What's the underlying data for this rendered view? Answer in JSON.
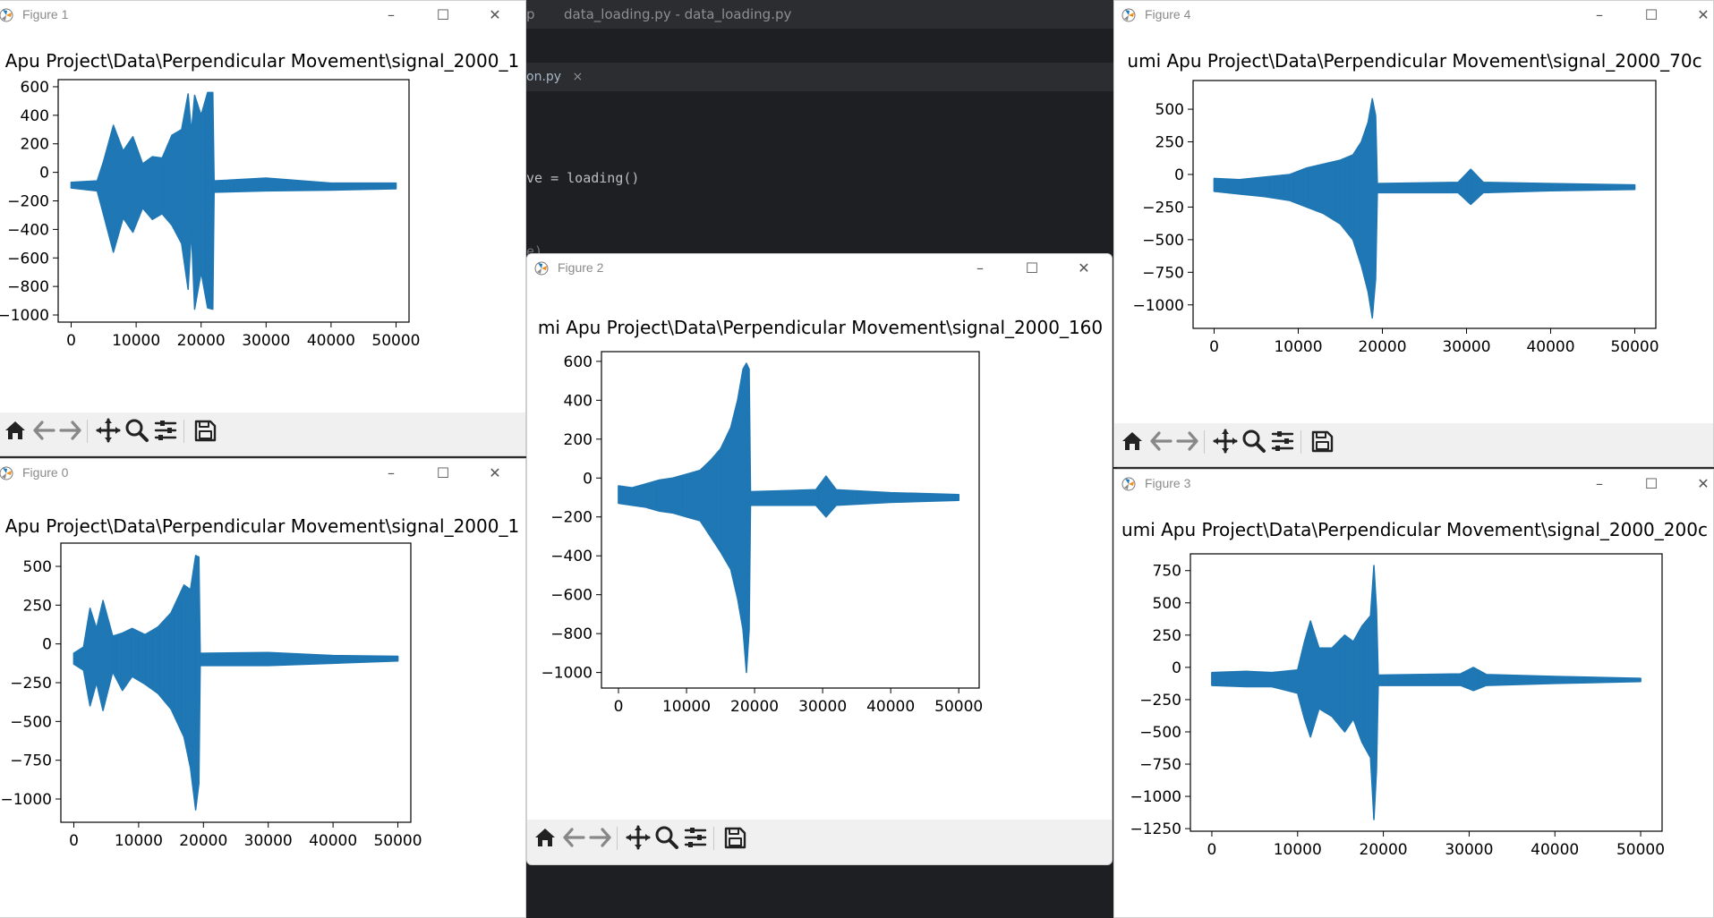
{
  "ide": {
    "title_left": "p",
    "title_main": "data_loading.py - data_loading.py",
    "tab_label": "on.py",
    "tab_close": "×",
    "code_line_1": "ve = loading()",
    "code_line_2": "e)"
  },
  "window_controls": {
    "minimize": "–",
    "maximize": "☐",
    "close": "✕"
  },
  "toolbar_icons": [
    "home-icon",
    "back-arrow-icon",
    "forward-arrow-icon",
    "pan-move-icon",
    "zoom-magnifier-icon",
    "subplot-config-icon",
    "save-icon"
  ],
  "figures": [
    {
      "title": "Figure 1",
      "plot_title": "Apu Project\\Data\\Perpendicular Movement\\signal_2000_1",
      "chart_data": {
        "type": "line",
        "title": "Apu Project\\Data\\Perpendicular Movement\\signal_2000_1",
        "xlim": [
          -2000,
          52000
        ],
        "ylim": [
          -1050,
          650
        ],
        "yticks": [
          600,
          400,
          200,
          0,
          -200,
          -400,
          -600,
          -800,
          -1000
        ],
        "xticks": [
          0,
          10000,
          20000,
          30000,
          40000,
          50000
        ],
        "envelope": {
          "x": [
            0,
            4000,
            5000,
            6500,
            8000,
            9500,
            11000,
            12500,
            14000,
            15500,
            17000,
            18000,
            18500,
            19000,
            20000,
            21000,
            21800,
            22000,
            30000,
            40000,
            50000
          ],
          "upper": [
            -70,
            -60,
            80,
            330,
            150,
            250,
            60,
            110,
            100,
            260,
            300,
            550,
            280,
            540,
            400,
            560,
            560,
            -60,
            -40,
            -75,
            -75
          ],
          "lower": [
            -110,
            -130,
            -300,
            -560,
            -320,
            -420,
            -250,
            -330,
            -290,
            -370,
            -500,
            -820,
            -400,
            -960,
            -700,
            -950,
            -960,
            -140,
            -130,
            -125,
            -115
          ]
        },
        "color": "#1f77b4"
      }
    },
    {
      "title": "Figure 0",
      "plot_title": "Apu Project\\Data\\Perpendicular Movement\\signal_2000_1",
      "chart_data": {
        "type": "line",
        "title": "Apu Project\\Data\\Perpendicular Movement\\signal_2000_1",
        "xlim": [
          -2000,
          52000
        ],
        "ylim": [
          -1150,
          650
        ],
        "yticks": [
          500,
          250,
          0,
          -250,
          -500,
          -750,
          -1000
        ],
        "xticks": [
          0,
          10000,
          20000,
          30000,
          40000,
          50000
        ],
        "envelope": {
          "x": [
            0,
            1500,
            2500,
            3500,
            4500,
            6000,
            7500,
            9000,
            11000,
            13000,
            15000,
            17000,
            18000,
            18800,
            19300,
            19500,
            30000,
            40000,
            50000
          ],
          "upper": [
            -60,
            -20,
            230,
            100,
            280,
            50,
            70,
            100,
            60,
            110,
            200,
            380,
            350,
            570,
            560,
            -60,
            -55,
            -75,
            -80
          ],
          "lower": [
            -130,
            -170,
            -400,
            -250,
            -430,
            -180,
            -300,
            -210,
            -260,
            -320,
            -420,
            -600,
            -800,
            -1070,
            -900,
            -140,
            -140,
            -125,
            -110
          ]
        },
        "color": "#1f77b4"
      }
    },
    {
      "title": "Figure 2",
      "plot_title": "mi Apu Project\\Data\\Perpendicular Movement\\signal_2000_160",
      "chart_data": {
        "type": "line",
        "title": "mi Apu Project\\Data\\Perpendicular Movement\\signal_2000_160",
        "xlim": [
          -2500,
          53000
        ],
        "ylim": [
          -1080,
          650
        ],
        "yticks": [
          600,
          400,
          200,
          0,
          -200,
          -400,
          -600,
          -800,
          -1000
        ],
        "xticks": [
          0,
          10000,
          20000,
          30000,
          40000,
          50000
        ],
        "envelope": {
          "x": [
            0,
            2000,
            4000,
            6000,
            8000,
            10000,
            12000,
            13500,
            15000,
            16500,
            17500,
            18300,
            18800,
            19200,
            19400,
            29000,
            30500,
            32000,
            40000,
            50000
          ],
          "upper": [
            -40,
            -50,
            -30,
            -10,
            0,
            20,
            40,
            90,
            150,
            260,
            400,
            560,
            590,
            560,
            -70,
            -60,
            10,
            -60,
            -75,
            -85
          ],
          "lower": [
            -130,
            -140,
            -150,
            -170,
            -180,
            -200,
            -220,
            -300,
            -380,
            -470,
            -620,
            -780,
            -1000,
            -780,
            -140,
            -140,
            -200,
            -140,
            -125,
            -115
          ]
        },
        "color": "#1f77b4"
      }
    },
    {
      "title": "Figure 4",
      "plot_title": "umi Apu Project\\Data\\Perpendicular Movement\\signal_2000_70c",
      "chart_data": {
        "type": "line",
        "title": "umi Apu Project\\Data\\Perpendicular Movement\\signal_2000_70c",
        "xlim": [
          -2500,
          52500
        ],
        "ylim": [
          -1180,
          720
        ],
        "yticks": [
          500,
          250,
          0,
          -250,
          -500,
          -750,
          -1000
        ],
        "xticks": [
          0,
          10000,
          20000,
          30000,
          40000,
          50000
        ],
        "envelope": {
          "x": [
            0,
            3000,
            6000,
            9000,
            11000,
            13000,
            15000,
            16500,
            17500,
            18300,
            18800,
            19200,
            19400,
            29000,
            30500,
            32000,
            40000,
            50000
          ],
          "upper": [
            -30,
            -40,
            -20,
            0,
            50,
            80,
            110,
            150,
            250,
            400,
            580,
            450,
            -70,
            -60,
            40,
            -60,
            -70,
            -80
          ],
          "lower": [
            -130,
            -150,
            -170,
            -200,
            -250,
            -300,
            -380,
            -500,
            -700,
            -900,
            -1100,
            -800,
            -140,
            -140,
            -230,
            -140,
            -125,
            -115
          ]
        },
        "color": "#1f77b4"
      }
    },
    {
      "title": "Figure 3",
      "plot_title": "umi Apu Project\\Data\\Perpendicular Movement\\signal_2000_200c",
      "chart_data": {
        "type": "line",
        "title": "umi Apu Project\\Data\\Perpendicular Movement\\signal_2000_200c",
        "xlim": [
          -2500,
          52500
        ],
        "ylim": [
          -1270,
          880
        ],
        "yticks": [
          750,
          500,
          250,
          0,
          -250,
          -500,
          -750,
          -1000,
          -1250
        ],
        "xticks": [
          0,
          10000,
          20000,
          30000,
          40000,
          50000
        ],
        "envelope": {
          "x": [
            0,
            4000,
            7000,
            10000,
            10800,
            11500,
            12500,
            14000,
            15500,
            16500,
            17500,
            18500,
            18900,
            19200,
            19400,
            29000,
            30500,
            32000,
            40000,
            50000
          ],
          "upper": [
            -40,
            -30,
            -40,
            -20,
            200,
            360,
            150,
            150,
            250,
            200,
            320,
            400,
            790,
            450,
            -60,
            -50,
            0,
            -55,
            -70,
            -85
          ],
          "lower": [
            -140,
            -150,
            -150,
            -200,
            -400,
            -540,
            -320,
            -380,
            -500,
            -400,
            -580,
            -700,
            -1180,
            -800,
            -140,
            -140,
            -180,
            -140,
            -125,
            -110
          ]
        },
        "color": "#1f77b4"
      }
    }
  ]
}
